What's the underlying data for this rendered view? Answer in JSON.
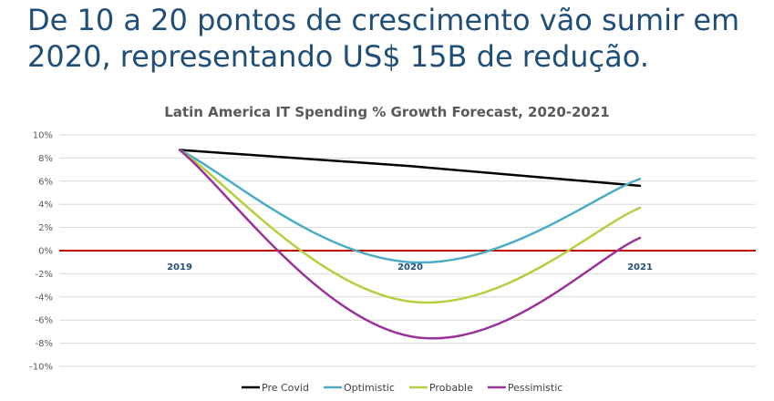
{
  "headline": "De 10 a 20 pontos de crescimento vão sumir em 2020, representando US$ 15B de redução.",
  "chart_data": {
    "type": "line",
    "title": "Latin America IT Spending % Growth Forecast, 2020-2021",
    "categories": [
      "2019",
      "2020",
      "2021"
    ],
    "y_ticks": [
      "10%",
      "8%",
      "6%",
      "4%",
      "2%",
      "0%",
      "-2%",
      "-4%",
      "-6%",
      "-8%",
      "-10%"
    ],
    "ylim": [
      -10,
      10
    ],
    "grid": true,
    "legend_position": "bottom",
    "zero_line_color": "#c00000",
    "series": [
      {
        "name": "Pre Covid",
        "color": "#000000",
        "points": [
          [
            2019,
            8.7
          ],
          [
            2020,
            7.3
          ],
          [
            2021,
            5.6
          ]
        ]
      },
      {
        "name": "Optimistic",
        "color": "#4bacc6",
        "points": [
          [
            2019,
            8.7
          ],
          [
            2020,
            -1.0
          ],
          [
            2021,
            6.2
          ]
        ]
      },
      {
        "name": "Probable",
        "color": "#b5cf3f",
        "points": [
          [
            2019,
            8.7
          ],
          [
            2020,
            -4.4
          ],
          [
            2021,
            3.7
          ]
        ]
      },
      {
        "name": "Pessimistic",
        "color": "#993399",
        "points": [
          [
            2019,
            8.7
          ],
          [
            2020,
            -7.4
          ],
          [
            2021,
            1.1
          ]
        ]
      }
    ]
  }
}
